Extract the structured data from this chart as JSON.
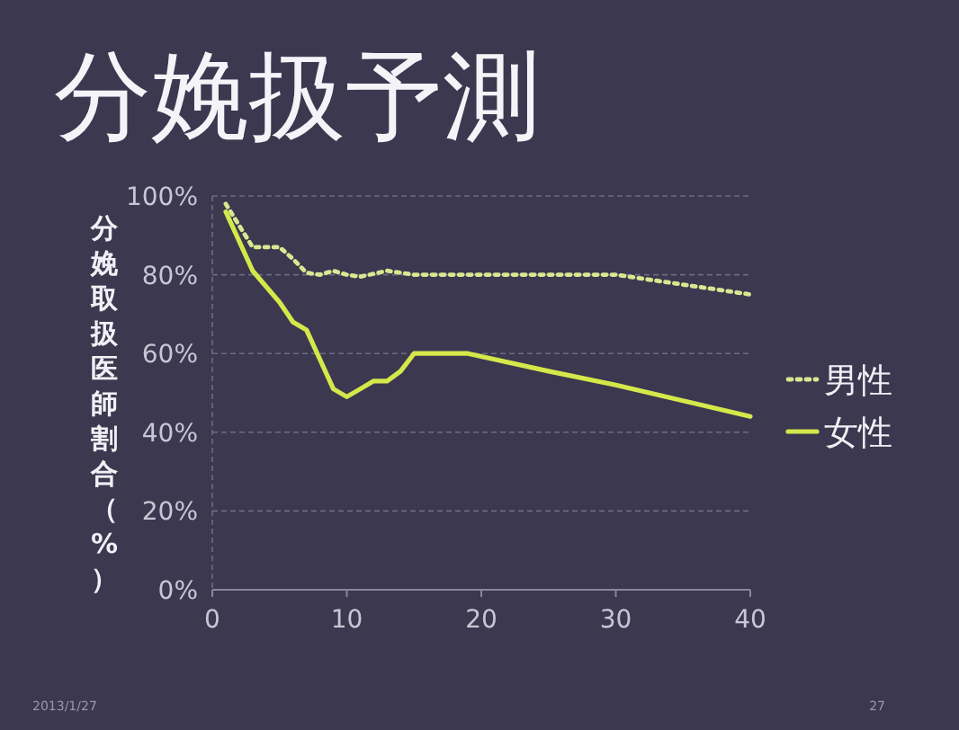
{
  "chart_data": {
    "type": "line",
    "title": "分娩扱予測",
    "ylabel": "分娩取扱医師割合（%）",
    "xlim": [
      0,
      40
    ],
    "xticks": [
      0,
      10,
      20,
      30,
      40
    ],
    "ylim": [
      0,
      100
    ],
    "yticks": [
      {
        "value": 0,
        "label": "0%"
      },
      {
        "value": 20,
        "label": "20%"
      },
      {
        "value": 40,
        "label": "40%"
      },
      {
        "value": 60,
        "label": "60%"
      },
      {
        "value": 80,
        "label": "80%"
      },
      {
        "value": 100,
        "label": "100%"
      }
    ],
    "grid": "y",
    "legend": "right",
    "marker": "none",
    "series": [
      {
        "name": "男性",
        "color": "#d8e890",
        "line_style": "dotted",
        "x": [
          1,
          3,
          5,
          6,
          7,
          8,
          9,
          10,
          11,
          13,
          15,
          30,
          35,
          40
        ],
        "values": [
          98,
          87,
          87,
          84,
          80.5,
          80,
          81,
          80,
          79.5,
          81,
          80,
          80,
          77.5,
          75
        ]
      },
      {
        "name": "女性",
        "color": "#d4e84a",
        "line_style": "solid",
        "x": [
          1,
          3,
          5,
          6,
          7,
          8,
          9,
          10,
          11,
          12,
          13,
          14,
          15,
          19,
          25,
          30,
          40
        ],
        "values": [
          96,
          81,
          73,
          68,
          66,
          58.5,
          51,
          49,
          51,
          53,
          53,
          55.5,
          60,
          60,
          55.5,
          52,
          44
        ]
      }
    ],
    "annotations": [
      "2013/1/27",
      "27"
    ]
  }
}
